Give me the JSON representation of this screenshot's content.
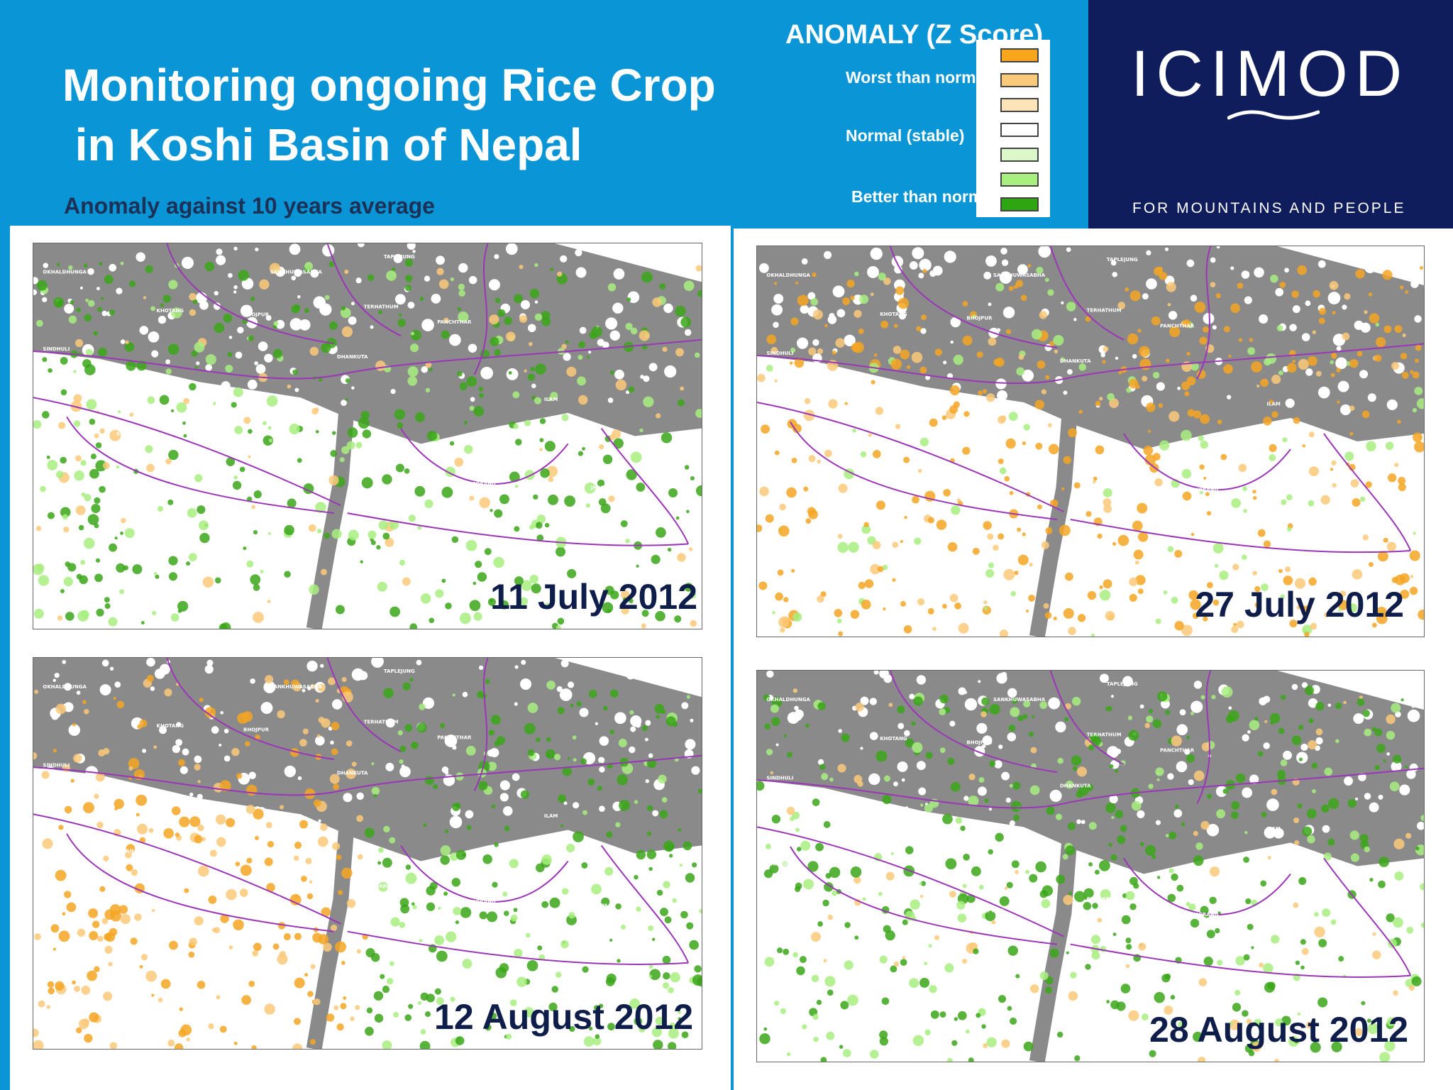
{
  "header": {
    "title_line1": "Monitoring ongoing Rice Crop",
    "title_line2": " in Koshi Basin of Nepal",
    "subtitle": "Anomaly against 10 years average"
  },
  "legend": {
    "title": "ANOMALY (Z Score)",
    "worst_label": "Worst than normal",
    "normal_label": "Normal (stable)",
    "better_label": "Better than normal",
    "swatch_colors": [
      "#f9a61c",
      "#fbc97a",
      "#fde4b8",
      "#ffffff",
      "#dcf7c8",
      "#a8ef80",
      "#2ea612"
    ]
  },
  "logo": {
    "name": "ICIMOD",
    "tagline": "FOR MOUNTAINS AND PEOPLE"
  },
  "district_labels": [
    "OKHALDHUNGA",
    "SANKHUWASABHA",
    "TAPLEJUNG",
    "KHOTANG",
    "BHOJPUR",
    "TERHATHUM",
    "PANCHTHAR",
    "SINDHULI",
    "DHANKUTA",
    "UDAYAPUR",
    "ILAM",
    "DHANUSA",
    "SIRAHA",
    "SUNSARI",
    "SAPTARI",
    "MORANG",
    "JHAPA"
  ],
  "maps": [
    {
      "date": "11 July 2012",
      "tone": "green",
      "colors": {
        "gray": "#8a8a8a",
        "boundary": "#9b36b8",
        "green": "#3aa617",
        "orange": "#f5a623"
      }
    },
    {
      "date": "27 July 2012",
      "tone": "orange",
      "colors": {
        "gray": "#8a8a8a",
        "boundary": "#9b36b8",
        "green": "#3aa617",
        "orange": "#f5a623"
      }
    },
    {
      "date": "12 August 2012",
      "tone": "mixed",
      "colors": {
        "gray": "#8a8a8a",
        "boundary": "#9b36b8",
        "green": "#3aa617",
        "orange": "#f5a623"
      }
    },
    {
      "date": "28 August 2012",
      "tone": "green",
      "colors": {
        "gray": "#8a8a8a",
        "boundary": "#9b36b8",
        "green": "#3aa617",
        "orange": "#f5a623"
      }
    }
  ]
}
